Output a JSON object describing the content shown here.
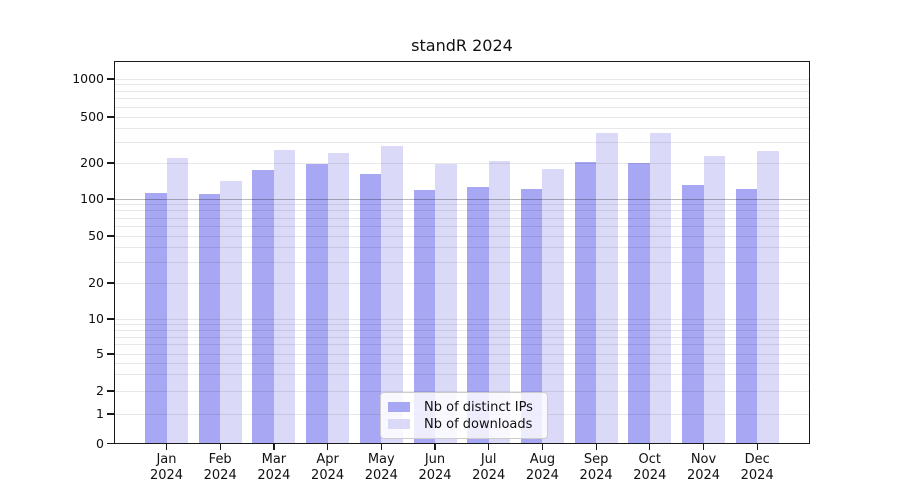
{
  "title": "standR 2024",
  "chart_data": {
    "type": "bar",
    "title": "standR 2024",
    "categories": [
      "Jan",
      "Feb",
      "Mar",
      "Apr",
      "May",
      "Jun",
      "Jul",
      "Aug",
      "Sep",
      "Oct",
      "Nov",
      "Dec"
    ],
    "year": "2024",
    "series": [
      {
        "name": "Nb of distinct IPs",
        "color": "#a7a7f3",
        "values": [
          112,
          111,
          176,
          197,
          163,
          119,
          126,
          121,
          205,
          201,
          132,
          121
        ]
      },
      {
        "name": "Nb of downloads",
        "color": "#dadaf8",
        "values": [
          221,
          141,
          260,
          246,
          282,
          196,
          208,
          178,
          365,
          363,
          230,
          255
        ]
      }
    ],
    "yscale": "symlog",
    "yticks": [
      0,
      1,
      2,
      5,
      10,
      20,
      50,
      100,
      200,
      500,
      1000
    ],
    "ylim": [
      0,
      1400
    ],
    "grid": true,
    "grid_emphasis_value": 100,
    "legend_position": "lower center"
  },
  "colors": {
    "bar_distinct_ips": "#a7a7f3",
    "bar_downloads": "#dadaf8",
    "grid": "rgba(0,0,0,0.09)",
    "grid_emphasis": "rgba(0,0,0,0.27)",
    "axis": "#1a1a1a",
    "text": "#111111",
    "legend_border": "#cccccc"
  }
}
